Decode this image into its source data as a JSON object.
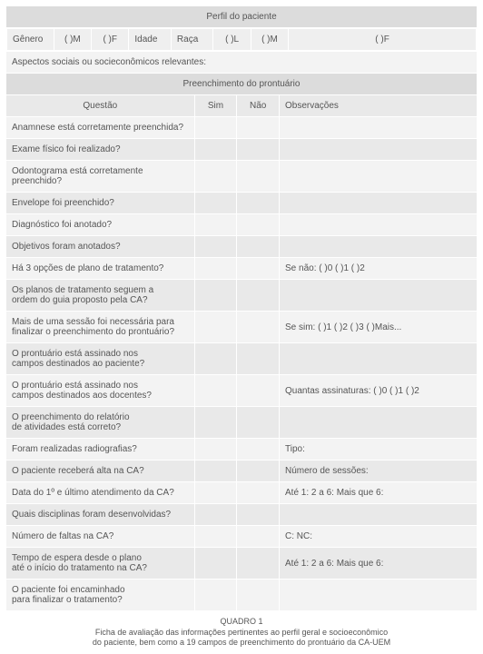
{
  "header1": "Perfil do paciente",
  "perfil": {
    "genero": "Gênero",
    "m": "(   )M",
    "f": "(   )F",
    "idade": "Idade",
    "raca": "Raça",
    "l": "(   )L",
    "m2": "(   )M",
    "f2": "(   )F"
  },
  "aspectos": "Aspectos sociais ou socieconômicos relevantes:",
  "header2": "Preenchimento do prontuário",
  "cols": {
    "q": "Questão",
    "sim": "Sim",
    "nao": "Não",
    "obs": "Observações"
  },
  "rows": [
    {
      "q": "Anamnese está corretamente preenchida?",
      "obs": ""
    },
    {
      "q": "Exame físico foi realizado?",
      "obs": ""
    },
    {
      "q": "Odontograma está corretamente preenchido?",
      "obs": ""
    },
    {
      "q": "Envelope foi preenchido?",
      "obs": ""
    },
    {
      "q": "Diagnóstico foi anotado?",
      "obs": ""
    },
    {
      "q": "Objetivos foram anotados?",
      "obs": ""
    },
    {
      "q": "Há 3 opções de plano de tratamento?",
      "obs": "Se não: (   )0  (   )1  (   )2"
    },
    {
      "q": "Os planos de tratamento seguem a\nordem do guia proposto pela CA?",
      "obs": ""
    },
    {
      "q": "Mais de uma sessão foi necessária para\nfinalizar o preenchimento do prontuário?",
      "obs": "Se sim: (   )1  (   )2  (   )3  (   )Mais..."
    },
    {
      "q": "O prontuário está assinado nos\ncampos destinados ao paciente?",
      "obs": ""
    },
    {
      "q": "O prontuário está assinado nos\ncampos destinados aos docentes?",
      "obs": "Quantas assinaturas: (   )0  (   )1  (   )2"
    },
    {
      "q": "O preenchimento do relatório\nde atividades está correto?",
      "obs": ""
    },
    {
      "q": "Foram realizadas radiografias?",
      "obs": "Tipo:"
    },
    {
      "q": "O paciente receberá alta na CA?",
      "obs": "Número de sessões:"
    },
    {
      "q": "Data do 1º e último atendimento da CA?",
      "obs": "Até 1:            2 a 6:              Mais que 6:"
    },
    {
      "q": "Quais disciplinas foram desenvolvidas?",
      "obs": ""
    },
    {
      "q": "Número de faltas na CA?",
      "obs": "C:                   NC:"
    },
    {
      "q": "Tempo de espera desde o plano\naté o início do tratamento na CA?",
      "obs": "Até 1:            2 a 6:              Mais que 6:"
    },
    {
      "q": "O paciente foi encaminhado\npara finalizar o tratamento?",
      "obs": ""
    }
  ],
  "caption": {
    "t": "QUADRO 1",
    "l1": "Ficha de avaliação das informações pertinentes ao perfil geral e socioeconômico",
    "l2": "do paciente, bem como a 19 campos de preenchimento do prontuário da CA-UEM"
  }
}
